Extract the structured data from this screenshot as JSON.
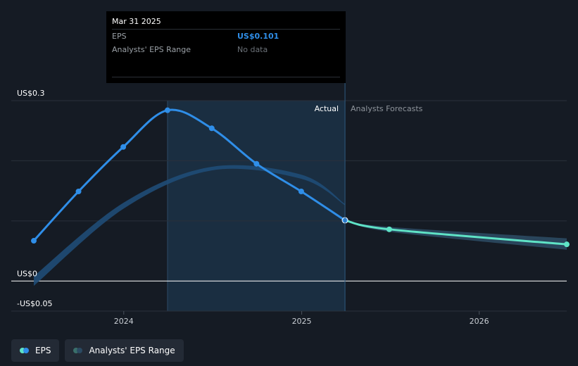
{
  "tooltip": {
    "date": "Mar 31 2025",
    "eps_label": "EPS",
    "eps_value": "US$0.101",
    "range_label": "Analysts' EPS Range",
    "range_value": "No data"
  },
  "legend": {
    "eps_label": "EPS",
    "range_label": "Analysts' EPS Range"
  },
  "colors": {
    "background": "#151b24",
    "eps_actual": "#2f8ee8",
    "eps_forecast": "#5fe3c6",
    "range_band": "#2b4a62",
    "past_range": "#1f4d77",
    "highlight": "#1b3146"
  },
  "chart_data": {
    "type": "line",
    "title": "",
    "xlabel": "",
    "ylabel": "",
    "ylim": [
      -0.05,
      0.3
    ],
    "y_ticks": [
      {
        "value": 0.3,
        "label": "US$0.3"
      },
      {
        "value": 0,
        "label": "US$0"
      },
      {
        "value": -0.05,
        "label": "-US$0.05"
      }
    ],
    "x_ticks": [
      {
        "value": "2024-01-01",
        "label": "2024"
      },
      {
        "value": "2025-01-01",
        "label": "2025"
      },
      {
        "value": "2026-01-01",
        "label": "2026"
      }
    ],
    "xlim": [
      "2023-06-30",
      "2026-06-30"
    ],
    "divider_date": "2025-03-31",
    "highlight_range": [
      "2024-03-31",
      "2025-03-31"
    ],
    "section_labels": {
      "actual": "Actual",
      "forecast": "Analysts Forecasts"
    },
    "series": [
      {
        "name": "EPS",
        "points": [
          {
            "x": "2023-06-30",
            "y": 0.067
          },
          {
            "x": "2023-09-30",
            "y": 0.149
          },
          {
            "x": "2023-12-31",
            "y": 0.223
          },
          {
            "x": "2024-03-31",
            "y": 0.284
          },
          {
            "x": "2024-06-30",
            "y": 0.254
          },
          {
            "x": "2024-09-30",
            "y": 0.195
          },
          {
            "x": "2024-12-31",
            "y": 0.149
          },
          {
            "x": "2025-03-31",
            "y": 0.101
          }
        ]
      },
      {
        "name": "EPS Forecast",
        "points": [
          {
            "x": "2025-03-31",
            "y": 0.101
          },
          {
            "x": "2025-06-30",
            "y": 0.086
          },
          {
            "x": "2026-06-30",
            "y": 0.061
          }
        ]
      }
    ],
    "past_range_band": [
      {
        "x": "2023-06-30",
        "low": -0.008,
        "high": 0.008
      },
      {
        "x": "2023-12-31",
        "low": 0.12,
        "high": 0.13
      },
      {
        "x": "2024-06-30",
        "low": 0.184,
        "high": 0.19
      },
      {
        "x": "2024-12-31",
        "low": 0.17,
        "high": 0.177
      },
      {
        "x": "2025-03-31",
        "low": 0.126,
        "high": 0.128
      }
    ],
    "forecast_range_band": [
      {
        "x": "2025-03-31",
        "low": 0.101,
        "high": 0.101
      },
      {
        "x": "2025-06-30",
        "low": 0.082,
        "high": 0.09
      },
      {
        "x": "2026-06-30",
        "low": 0.052,
        "high": 0.071
      }
    ]
  }
}
